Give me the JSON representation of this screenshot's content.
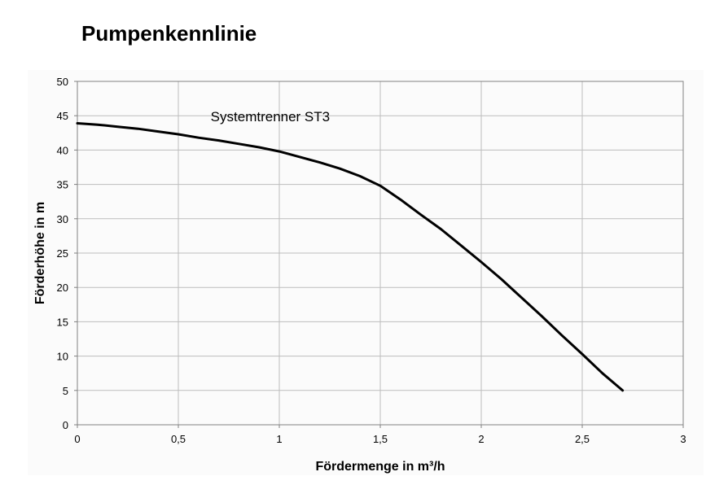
{
  "page": {
    "title": "Pumpenkennlinie"
  },
  "chart_data": {
    "type": "line",
    "title": "Pumpenkennlinie",
    "xlabel": "Fördermenge in m³/h",
    "ylabel": "Förderhöhe in m",
    "xlim": [
      0,
      3
    ],
    "ylim": [
      0,
      50
    ],
    "x_ticks": [
      0,
      0.5,
      1,
      1.5,
      2,
      2.5,
      3
    ],
    "x_tick_labels": [
      "0",
      "0,5",
      "1",
      "1,5",
      "2",
      "2,5",
      "3"
    ],
    "y_ticks": [
      0,
      5,
      10,
      15,
      20,
      25,
      30,
      35,
      40,
      45,
      50
    ],
    "y_tick_labels": [
      "0",
      "5",
      "10",
      "15",
      "20",
      "25",
      "30",
      "35",
      "40",
      "45",
      "50"
    ],
    "grid": true,
    "annotations": [
      {
        "text": "Systemtrenner ST3",
        "x": 0.66,
        "y": 44.2
      }
    ],
    "series": [
      {
        "x": [
          0,
          0.1,
          0.2,
          0.3,
          0.4,
          0.5,
          0.6,
          0.7,
          0.8,
          0.9,
          1.0,
          1.1,
          1.2,
          1.3,
          1.4,
          1.5,
          1.6,
          1.7,
          1.8,
          1.9,
          2.0,
          2.1,
          2.2,
          2.3,
          2.4,
          2.5,
          2.6,
          2.7
        ],
        "y": [
          43.9,
          43.7,
          43.4,
          43.1,
          42.7,
          42.3,
          41.8,
          41.4,
          40.9,
          40.4,
          39.8,
          39.0,
          38.2,
          37.3,
          36.2,
          34.8,
          32.8,
          30.6,
          28.5,
          26.1,
          23.7,
          21.2,
          18.5,
          15.8,
          13.0,
          10.3,
          7.5,
          5.0
        ]
      }
    ]
  }
}
